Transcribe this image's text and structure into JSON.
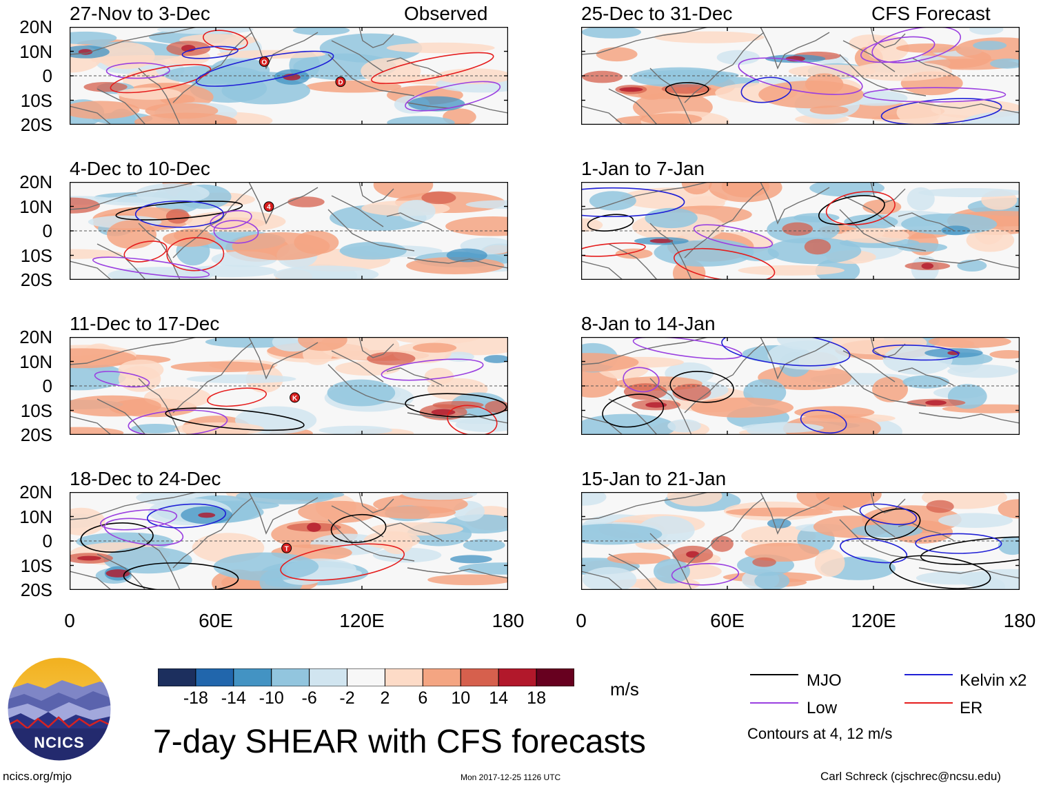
{
  "main_title": "7-day SHEAR with CFS forecasts",
  "logo": {
    "text": "NCICS"
  },
  "footer": {
    "site": "ncics.org/mjo",
    "timestamp": "Mon 2017-12-25 1126 UTC",
    "author": "Carl Schreck (cjschrec@ncsu.edu)"
  },
  "y_axis_labels": [
    "20N",
    "10N",
    "0",
    "10S",
    "20S"
  ],
  "x_axis_labels": [
    "0",
    "60E",
    "120E",
    "180"
  ],
  "colorbar": {
    "unit": "m/s",
    "tick_labels": [
      "-18",
      "-14",
      "-10",
      "-6",
      "-2",
      "2",
      "6",
      "10",
      "14",
      "18"
    ],
    "colors": [
      "#1c2f5e",
      "#2166ac",
      "#4393c3",
      "#92c5de",
      "#d1e5f0",
      "#f7f7f7",
      "#fddbc7",
      "#f4a582",
      "#d6604d",
      "#b2182b",
      "#67001f"
    ]
  },
  "legend": {
    "items": [
      {
        "label": "MJO",
        "color": "#000000"
      },
      {
        "label": "Kelvin x2",
        "color": "#1f1fd6"
      },
      {
        "label": "Low",
        "color": "#9a3fe0"
      },
      {
        "label": "ER",
        "color": "#e51c1c"
      }
    ],
    "note": "Contours at 4, 12 m/s"
  },
  "panels": [
    {
      "id": "p1",
      "title": "27-Nov to 3-Dec",
      "subtitle": "Observed",
      "column": "observed",
      "storms": [
        "O",
        "D"
      ]
    },
    {
      "id": "p2",
      "title": "4-Dec to 10-Dec",
      "subtitle": "",
      "column": "observed",
      "storms": [
        "4"
      ]
    },
    {
      "id": "p3",
      "title": "11-Dec to 17-Dec",
      "subtitle": "",
      "column": "observed",
      "storms": [
        "K"
      ]
    },
    {
      "id": "p4",
      "title": "18-Dec to 24-Dec",
      "subtitle": "",
      "column": "observed",
      "storms": [
        "T"
      ]
    },
    {
      "id": "p5",
      "title": "25-Dec to 31-Dec",
      "subtitle": "CFS Forecast",
      "column": "forecast",
      "storms": []
    },
    {
      "id": "p6",
      "title": "1-Jan to 7-Jan",
      "subtitle": "",
      "column": "forecast",
      "storms": []
    },
    {
      "id": "p7",
      "title": "8-Jan to 14-Jan",
      "subtitle": "",
      "column": "forecast",
      "storms": []
    },
    {
      "id": "p8",
      "title": "15-Jan to 21-Jan",
      "subtitle": "",
      "column": "forecast",
      "storms": []
    }
  ]
}
